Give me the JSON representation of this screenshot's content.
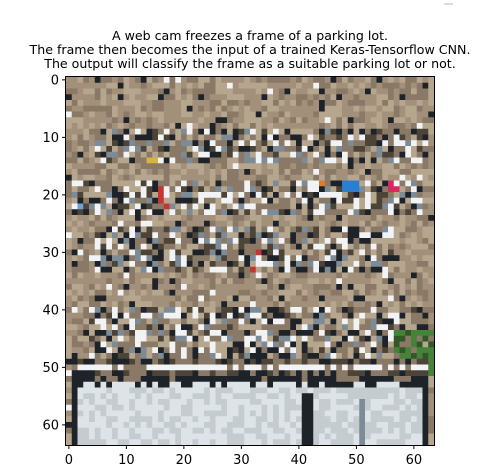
{
  "chart_data": {
    "type": "heatmap",
    "title_lines": [
      "A web cam freezes a frame of a parking lot.",
      "The frame then becomes the input of a trained Keras-Tensorflow CNN.",
      "The output will classify the frame as a suitable parking lot or not."
    ],
    "xlabel": "",
    "ylabel": "",
    "image_size": [
      64,
      64
    ],
    "xlim": [
      -0.5,
      63.5
    ],
    "ylim": [
      63.5,
      -0.5
    ],
    "xticks": [
      0,
      10,
      20,
      30,
      40,
      50,
      60
    ],
    "yticks": [
      0,
      10,
      20,
      30,
      40,
      50,
      60
    ],
    "grid": false,
    "colors": {
      "sand": "#a2907a",
      "sand_light": "#b7a68e",
      "sand_dark": "#8a7966",
      "shadow": "#4d4438",
      "building": "#c5ccd0",
      "building_light": "#dde3e6",
      "line_white": "#f1f3f4",
      "dark": "#1d2329",
      "tree": "#47823a",
      "car_red": "#c73434",
      "car_blue": "#2b7fd1",
      "car_pink": "#d8295e",
      "car_yellow": "#d7b43a",
      "car_gray": "#7d8b96"
    },
    "regions": [
      {
        "name": "building-roof",
        "x": [
          1,
          62
        ],
        "y": [
          53,
          63
        ],
        "color": "building"
      },
      {
        "name": "row-1-cars",
        "x": [
          5,
          62
        ],
        "y": [
          9,
          14
        ]
      },
      {
        "name": "row-2-cars",
        "x": [
          1,
          61
        ],
        "y": [
          18,
          23
        ]
      },
      {
        "name": "row-3-cars",
        "x": [
          5,
          56
        ],
        "y": [
          26,
          33
        ]
      },
      {
        "name": "row-4-cars",
        "x": [
          4,
          62
        ],
        "y": [
          40,
          48
        ]
      },
      {
        "name": "trees",
        "x": [
          57,
          63
        ],
        "y": [
          44,
          51
        ],
        "color": "tree"
      }
    ]
  }
}
